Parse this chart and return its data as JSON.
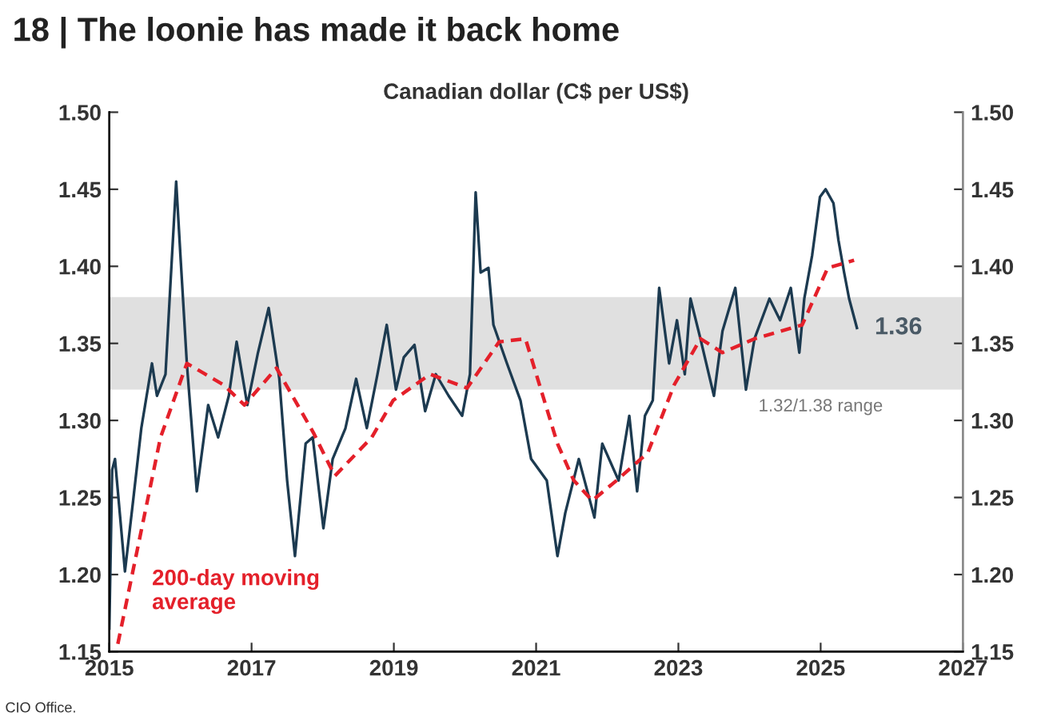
{
  "chart_data": {
    "type": "line",
    "title": "18 | The loonie has made it back home",
    "subtitle": "Canadian dollar (C$ per US$)",
    "annotations": [
      "CIO Office.",
      {
        "text": "1.36",
        "x": 2025.51,
        "y": 1.36
      },
      {
        "text": "1.32/1.38 range",
        "x": 2025.0,
        "y": 1.32
      }
    ],
    "series": [
      {
        "color": "#1c3a50",
        "line_style": "solid",
        "x": [
          2015.0,
          2015.04,
          2015.08,
          2015.22,
          2015.34,
          2015.45,
          2015.6,
          2015.67,
          2015.79,
          2015.86,
          2015.94,
          2016.0,
          2016.09,
          2016.23,
          2016.39,
          2016.53,
          2016.68,
          2016.79,
          2016.94,
          2017.09,
          2017.24,
          2017.39,
          2017.5,
          2017.61,
          2017.76,
          2017.86,
          2018.01,
          2018.14,
          2018.32,
          2018.47,
          2018.62,
          2018.77,
          2018.9,
          2019.03,
          2019.14,
          2019.29,
          2019.44,
          2019.59,
          2019.77,
          2019.96,
          2020.07,
          2020.15,
          2020.22,
          2020.33,
          2020.4,
          2020.59,
          2020.78,
          2020.93,
          2021.15,
          2021.3,
          2021.41,
          2021.6,
          2021.82,
          2021.93,
          2022.16,
          2022.31,
          2022.42,
          2022.53,
          2022.64,
          2022.73,
          2022.87,
          2022.98,
          2023.09,
          2023.17,
          2023.31,
          2023.5,
          2023.62,
          2023.8,
          2023.95,
          2024.07,
          2024.28,
          2024.43,
          2024.58,
          2024.7,
          2024.77,
          2024.88,
          2024.99,
          2025.07,
          2025.18,
          2025.25,
          2025.33,
          2025.4,
          2025.51
        ],
        "values": [
          1.165,
          1.268,
          1.275,
          1.202,
          1.25,
          1.295,
          1.337,
          1.316,
          1.33,
          1.389,
          1.455,
          1.407,
          1.337,
          1.254,
          1.31,
          1.289,
          1.316,
          1.351,
          1.31,
          1.344,
          1.373,
          1.327,
          1.261,
          1.212,
          1.285,
          1.289,
          1.23,
          1.275,
          1.295,
          1.327,
          1.295,
          1.33,
          1.362,
          1.32,
          1.341,
          1.349,
          1.306,
          1.33,
          1.316,
          1.303,
          1.33,
          1.448,
          1.396,
          1.399,
          1.362,
          1.337,
          1.313,
          1.275,
          1.261,
          1.212,
          1.24,
          1.275,
          1.237,
          1.285,
          1.261,
          1.303,
          1.254,
          1.303,
          1.313,
          1.386,
          1.337,
          1.365,
          1.33,
          1.379,
          1.353,
          1.316,
          1.358,
          1.386,
          1.32,
          1.353,
          1.379,
          1.365,
          1.386,
          1.344,
          1.379,
          1.407,
          1.445,
          1.45,
          1.441,
          1.417,
          1.396,
          1.379,
          1.36
        ]
      },
      {
        "name": "200-day moving\naverage",
        "color": "#e4202a",
        "line_style": "dashed",
        "x": [
          2015.12,
          2015.72,
          2016.09,
          2016.61,
          2016.9,
          2017.35,
          2017.87,
          2018.17,
          2018.69,
          2018.99,
          2019.51,
          2020.03,
          2020.48,
          2020.85,
          2021.3,
          2021.53,
          2021.79,
          2022.13,
          2022.57,
          2022.94,
          2023.31,
          2023.62,
          2024.07,
          2024.74,
          2025.1,
          2025.47
        ],
        "values": [
          1.155,
          1.289,
          1.337,
          1.323,
          1.31,
          1.334,
          1.292,
          1.264,
          1.289,
          1.313,
          1.33,
          1.321,
          1.351,
          1.353,
          1.285,
          1.261,
          1.248,
          1.261,
          1.279,
          1.323,
          1.353,
          1.344,
          1.353,
          1.362,
          1.399,
          1.404
        ]
      }
    ],
    "bands": [
      {
        "axis": "y",
        "from": 1.32,
        "to": 1.38,
        "color": "#e0e0e0"
      }
    ],
    "xlim": [
      2015,
      2027
    ],
    "xticks": [
      2015,
      2017,
      2019,
      2021,
      2023,
      2025,
      2027
    ],
    "ylim": [
      1.15,
      1.5
    ],
    "yticks": [
      1.15,
      {
        "value": 1.2,
        "label": "1.20"
      },
      1.25,
      {
        "value": 1.3,
        "label": "1.30"
      },
      1.35,
      {
        "value": 1.4,
        "label": "1.40"
      },
      1.45,
      {
        "value": 1.5,
        "label": "1.50"
      }
    ],
    "y2lim": [
      1.15,
      1.5
    ],
    "y2ticks": [
      1.15,
      {
        "value": 1.2,
        "label": "1.20"
      },
      1.25,
      {
        "value": 1.3,
        "label": "1.30"
      },
      1.35,
      {
        "value": 1.4,
        "label": "1.40"
      },
      1.45,
      {
        "value": 1.5,
        "label": "1.50"
      }
    ],
    "grid": false,
    "legend": false
  }
}
